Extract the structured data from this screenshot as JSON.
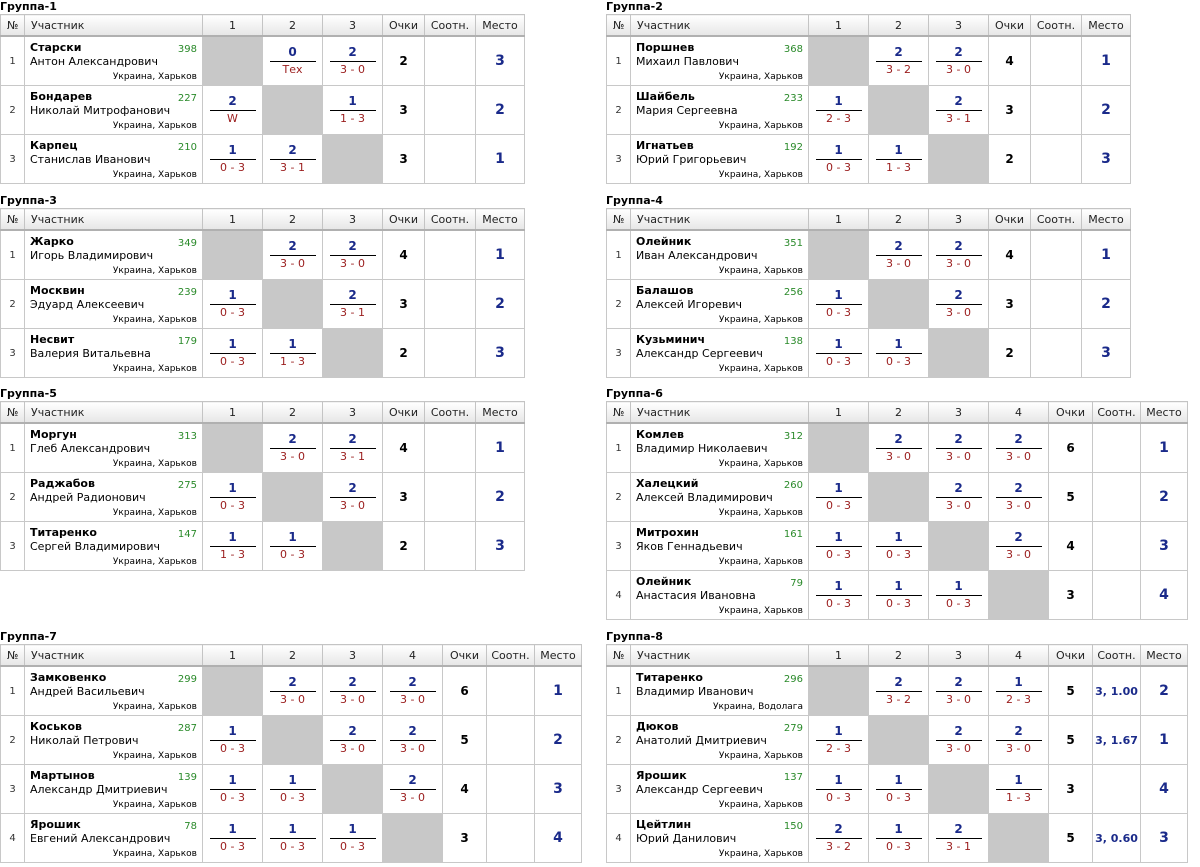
{
  "header": {
    "num": "№",
    "participant": "Участник",
    "points": "Очки",
    "ratio": "Соотн.",
    "place": "Место"
  },
  "groups": [
    {
      "title": "Группа-1",
      "cols": [
        "1",
        "2",
        "3"
      ],
      "players": [
        {
          "no": "1",
          "name": "Старски",
          "full": "Антон Александрович",
          "rating": "398",
          "loc": "Украина, Харьков",
          "results": [
            null,
            {
              "top": "0",
              "bot": "Тех"
            },
            {
              "top": "2",
              "bot": "3 - 0"
            }
          ],
          "points": "2",
          "ratio": "",
          "place": "3"
        },
        {
          "no": "2",
          "name": "Бондарев",
          "full": "Николай Митрофанович",
          "rating": "227",
          "loc": "Украина, Харьков",
          "results": [
            {
              "top": "2",
              "bot": "W"
            },
            null,
            {
              "top": "1",
              "bot": "1 - 3"
            }
          ],
          "points": "3",
          "ratio": "",
          "place": "2"
        },
        {
          "no": "3",
          "name": "Карпец",
          "full": "Станислав Иванович",
          "rating": "210",
          "loc": "Украина, Харьков",
          "results": [
            {
              "top": "1",
              "bot": "0 - 3"
            },
            {
              "top": "2",
              "bot": "3 - 1"
            },
            null
          ],
          "points": "3",
          "ratio": "",
          "place": "1"
        }
      ]
    },
    {
      "title": "Группа-2",
      "cols": [
        "1",
        "2",
        "3"
      ],
      "players": [
        {
          "no": "1",
          "name": "Поршнев",
          "full": "Михаил Павлович",
          "rating": "368",
          "loc": "Украина, Харьков",
          "results": [
            null,
            {
              "top": "2",
              "bot": "3 - 2"
            },
            {
              "top": "2",
              "bot": "3 - 0"
            }
          ],
          "points": "4",
          "ratio": "",
          "place": "1"
        },
        {
          "no": "2",
          "name": "Шайбель",
          "full": "Мария Сергеевна",
          "rating": "233",
          "loc": "Украина, Харьков",
          "results": [
            {
              "top": "1",
              "bot": "2 - 3"
            },
            null,
            {
              "top": "2",
              "bot": "3 - 1"
            }
          ],
          "points": "3",
          "ratio": "",
          "place": "2"
        },
        {
          "no": "3",
          "name": "Игнатьев",
          "full": "Юрий Григорьевич",
          "rating": "192",
          "loc": "Украина, Харьков",
          "results": [
            {
              "top": "1",
              "bot": "0 - 3"
            },
            {
              "top": "1",
              "bot": "1 - 3"
            },
            null
          ],
          "points": "2",
          "ratio": "",
          "place": "3"
        }
      ]
    },
    {
      "title": "Группа-3",
      "cols": [
        "1",
        "2",
        "3"
      ],
      "players": [
        {
          "no": "1",
          "name": "Жарко",
          "full": "Игорь Владимирович",
          "rating": "349",
          "loc": "Украина, Харьков",
          "results": [
            null,
            {
              "top": "2",
              "bot": "3 - 0"
            },
            {
              "top": "2",
              "bot": "3 - 0"
            }
          ],
          "points": "4",
          "ratio": "",
          "place": "1"
        },
        {
          "no": "2",
          "name": "Москвин",
          "full": "Эдуард Алексеевич",
          "rating": "239",
          "loc": "Украина, Харьков",
          "results": [
            {
              "top": "1",
              "bot": "0 - 3"
            },
            null,
            {
              "top": "2",
              "bot": "3 - 1"
            }
          ],
          "points": "3",
          "ratio": "",
          "place": "2"
        },
        {
          "no": "3",
          "name": "Несвит",
          "full": "Валерия Витальевна",
          "rating": "179",
          "loc": "Украина, Харьков",
          "results": [
            {
              "top": "1",
              "bot": "0 - 3"
            },
            {
              "top": "1",
              "bot": "1 - 3"
            },
            null
          ],
          "points": "2",
          "ratio": "",
          "place": "3"
        }
      ]
    },
    {
      "title": "Группа-4",
      "cols": [
        "1",
        "2",
        "3"
      ],
      "players": [
        {
          "no": "1",
          "name": "Олейник",
          "full": "Иван Александрович",
          "rating": "351",
          "loc": "Украина, Харьков",
          "results": [
            null,
            {
              "top": "2",
              "bot": "3 - 0"
            },
            {
              "top": "2",
              "bot": "3 - 0"
            }
          ],
          "points": "4",
          "ratio": "",
          "place": "1"
        },
        {
          "no": "2",
          "name": "Балашов",
          "full": "Алексей Игоревич",
          "rating": "256",
          "loc": "Украина, Харьков",
          "results": [
            {
              "top": "1",
              "bot": "0 - 3"
            },
            null,
            {
              "top": "2",
              "bot": "3 - 0"
            }
          ],
          "points": "3",
          "ratio": "",
          "place": "2"
        },
        {
          "no": "3",
          "name": "Кузьминич",
          "full": "Александр Сергеевич",
          "rating": "138",
          "loc": "Украина, Харьков",
          "results": [
            {
              "top": "1",
              "bot": "0 - 3"
            },
            {
              "top": "1",
              "bot": "0 - 3"
            },
            null
          ],
          "points": "2",
          "ratio": "",
          "place": "3"
        }
      ]
    },
    {
      "title": "Группа-5",
      "cols": [
        "1",
        "2",
        "3"
      ],
      "players": [
        {
          "no": "1",
          "name": "Моргун",
          "full": "Глеб Александрович",
          "rating": "313",
          "loc": "Украина, Харьков",
          "results": [
            null,
            {
              "top": "2",
              "bot": "3 - 0"
            },
            {
              "top": "2",
              "bot": "3 - 1"
            }
          ],
          "points": "4",
          "ratio": "",
          "place": "1"
        },
        {
          "no": "2",
          "name": "Раджабов",
          "full": "Андрей Радионович",
          "rating": "275",
          "loc": "Украина, Харьков",
          "results": [
            {
              "top": "1",
              "bot": "0 - 3"
            },
            null,
            {
              "top": "2",
              "bot": "3 - 0"
            }
          ],
          "points": "3",
          "ratio": "",
          "place": "2"
        },
        {
          "no": "3",
          "name": "Титаренко",
          "full": "Сергей Владимирович",
          "rating": "147",
          "loc": "Украина, Харьков",
          "results": [
            {
              "top": "1",
              "bot": "1 - 3"
            },
            {
              "top": "1",
              "bot": "0 - 3"
            },
            null
          ],
          "points": "2",
          "ratio": "",
          "place": "3"
        }
      ]
    },
    {
      "title": "Группа-6",
      "cols": [
        "1",
        "2",
        "3",
        "4"
      ],
      "players": [
        {
          "no": "1",
          "name": "Комлев",
          "full": "Владимир Николаевич",
          "rating": "312",
          "loc": "Украина, Харьков",
          "results": [
            null,
            {
              "top": "2",
              "bot": "3 - 0"
            },
            {
              "top": "2",
              "bot": "3 - 0"
            },
            {
              "top": "2",
              "bot": "3 - 0"
            }
          ],
          "points": "6",
          "ratio": "",
          "place": "1"
        },
        {
          "no": "2",
          "name": "Халецкий",
          "full": "Алексей Владимирович",
          "rating": "260",
          "loc": "Украина, Харьков",
          "results": [
            {
              "top": "1",
              "bot": "0 - 3"
            },
            null,
            {
              "top": "2",
              "bot": "3 - 0"
            },
            {
              "top": "2",
              "bot": "3 - 0"
            }
          ],
          "points": "5",
          "ratio": "",
          "place": "2"
        },
        {
          "no": "3",
          "name": "Митрохин",
          "full": "Яков Геннадьевич",
          "rating": "161",
          "loc": "Украина, Харьков",
          "results": [
            {
              "top": "1",
              "bot": "0 - 3"
            },
            {
              "top": "1",
              "bot": "0 - 3"
            },
            null,
            {
              "top": "2",
              "bot": "3 - 0"
            }
          ],
          "points": "4",
          "ratio": "",
          "place": "3"
        },
        {
          "no": "4",
          "name": "Олейник",
          "full": "Анастасия Ивановна",
          "rating": "79",
          "loc": "Украина, Харьков",
          "results": [
            {
              "top": "1",
              "bot": "0 - 3"
            },
            {
              "top": "1",
              "bot": "0 - 3"
            },
            {
              "top": "1",
              "bot": "0 - 3"
            },
            null
          ],
          "points": "3",
          "ratio": "",
          "place": "4"
        }
      ]
    },
    {
      "title": "Группа-7",
      "cols": [
        "1",
        "2",
        "3",
        "4"
      ],
      "players": [
        {
          "no": "1",
          "name": "Замковенко",
          "full": "Андрей Васильевич",
          "rating": "299",
          "loc": "Украина, Харьков",
          "results": [
            null,
            {
              "top": "2",
              "bot": "3 - 0"
            },
            {
              "top": "2",
              "bot": "3 - 0"
            },
            {
              "top": "2",
              "bot": "3 - 0"
            }
          ],
          "points": "6",
          "ratio": "",
          "place": "1"
        },
        {
          "no": "2",
          "name": "Коськов",
          "full": "Николай Петрович",
          "rating": "287",
          "loc": "Украина, Харьков",
          "results": [
            {
              "top": "1",
              "bot": "0 - 3"
            },
            null,
            {
              "top": "2",
              "bot": "3 - 0"
            },
            {
              "top": "2",
              "bot": "3 - 0"
            }
          ],
          "points": "5",
          "ratio": "",
          "place": "2"
        },
        {
          "no": "3",
          "name": "Мартынов",
          "full": "Александр Дмитриевич",
          "rating": "139",
          "loc": "Украина, Харьков",
          "results": [
            {
              "top": "1",
              "bot": "0 - 3"
            },
            {
              "top": "1",
              "bot": "0 - 3"
            },
            null,
            {
              "top": "2",
              "bot": "3 - 0"
            }
          ],
          "points": "4",
          "ratio": "",
          "place": "3"
        },
        {
          "no": "4",
          "name": "Ярошик",
          "full": "Евгений Александрович",
          "rating": "78",
          "loc": "Украина, Харьков",
          "results": [
            {
              "top": "1",
              "bot": "0 - 3"
            },
            {
              "top": "1",
              "bot": "0 - 3"
            },
            {
              "top": "1",
              "bot": "0 - 3"
            },
            null
          ],
          "points": "3",
          "ratio": "",
          "place": "4"
        }
      ]
    },
    {
      "title": "Группа-8",
      "cols": [
        "1",
        "2",
        "3",
        "4"
      ],
      "players": [
        {
          "no": "1",
          "name": "Титаренко",
          "full": "Владимир Иванович",
          "rating": "296",
          "loc": "Украина, Водолага",
          "results": [
            null,
            {
              "top": "2",
              "bot": "3 - 2"
            },
            {
              "top": "2",
              "bot": "3 - 0"
            },
            {
              "top": "1",
              "bot": "2 - 3"
            }
          ],
          "points": "5",
          "ratio": "3, 1.00",
          "place": "2"
        },
        {
          "no": "2",
          "name": "Дюков",
          "full": "Анатолий Дмитриевич",
          "rating": "279",
          "loc": "Украина, Харьков",
          "results": [
            {
              "top": "1",
              "bot": "2 - 3"
            },
            null,
            {
              "top": "2",
              "bot": "3 - 0"
            },
            {
              "top": "2",
              "bot": "3 - 0"
            }
          ],
          "points": "5",
          "ratio": "3, 1.67",
          "place": "1"
        },
        {
          "no": "3",
          "name": "Ярошик",
          "full": "Александр Сергеевич",
          "rating": "137",
          "loc": "Украина, Харьков",
          "results": [
            {
              "top": "1",
              "bot": "0 - 3"
            },
            {
              "top": "1",
              "bot": "0 - 3"
            },
            null,
            {
              "top": "1",
              "bot": "1 - 3"
            }
          ],
          "points": "3",
          "ratio": "",
          "place": "4"
        },
        {
          "no": "4",
          "name": "Цейтлин",
          "full": "Юрий Данилович",
          "rating": "150",
          "loc": "Украина, Харьков",
          "results": [
            {
              "top": "2",
              "bot": "3 - 2"
            },
            {
              "top": "1",
              "bot": "0 - 3"
            },
            {
              "top": "2",
              "bot": "3 - 1"
            },
            null
          ],
          "points": "5",
          "ratio": "3, 0.60",
          "place": "3"
        }
      ]
    }
  ]
}
